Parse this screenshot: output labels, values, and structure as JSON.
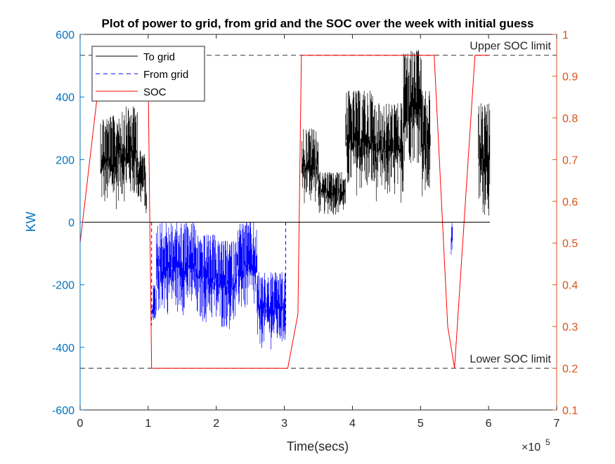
{
  "chart_data": {
    "type": "line",
    "title": "Plot of power to grid, from grid and the SOC over the week with initial guess",
    "xlabel": "Time(secs)",
    "x_exponent": "×10",
    "x_exponent_power": "5",
    "ylabel_left": "KW",
    "ylabel_right": "",
    "xlim": [
      0,
      7
    ],
    "ylim_left": [
      -600,
      600
    ],
    "ylim_right": [
      0.1,
      1.0
    ],
    "x_ticks": [
      "0",
      "1",
      "2",
      "3",
      "4",
      "5",
      "6",
      "7"
    ],
    "y_left_ticks": [
      "-600",
      "-400",
      "-200",
      "0",
      "200",
      "400",
      "600"
    ],
    "y_right_ticks": [
      "0.1",
      "0.2",
      "0.3",
      "0.4",
      "0.5",
      "0.6",
      "0.7",
      "0.8",
      "0.9",
      "1"
    ],
    "legend": {
      "position": "top-left",
      "entries": [
        "To grid",
        "From grid",
        "SOC"
      ]
    },
    "reference_lines": [
      {
        "label": "Upper SOC limit",
        "soc": 0.95
      },
      {
        "label": "Lower SOC limit",
        "soc": 0.2
      }
    ],
    "series": [
      {
        "name": "To grid",
        "axis": "left",
        "style": "solid",
        "color": "#000000",
        "blocks": [
          {
            "x_start": 0.3,
            "x_end": 0.55,
            "low": 30,
            "high": 340
          },
          {
            "x_start": 0.55,
            "x_end": 0.85,
            "low": 60,
            "high": 370
          },
          {
            "x_start": 0.85,
            "x_end": 0.95,
            "low": 40,
            "high": 230
          },
          {
            "x_start": 0.95,
            "x_end": 0.98,
            "low": 0,
            "high": 180
          },
          {
            "x_start": 3.25,
            "x_end": 3.5,
            "low": 50,
            "high": 300
          },
          {
            "x_start": 3.5,
            "x_end": 3.9,
            "low": 20,
            "high": 160
          },
          {
            "x_start": 3.9,
            "x_end": 4.3,
            "low": 80,
            "high": 420
          },
          {
            "x_start": 4.3,
            "x_end": 4.75,
            "low": 60,
            "high": 380
          },
          {
            "x_start": 4.75,
            "x_end": 5.02,
            "low": 180,
            "high": 550
          },
          {
            "x_start": 5.02,
            "x_end": 5.15,
            "low": 50,
            "high": 420
          },
          {
            "x_start": 5.85,
            "x_end": 6.02,
            "low": 10,
            "high": 380
          }
        ]
      },
      {
        "name": "From grid",
        "axis": "left",
        "style": "dashed",
        "color": "#0000FF",
        "blocks": [
          {
            "x_start": 1.05,
            "x_end": 1.12,
            "low": -370,
            "high": -200
          },
          {
            "x_start": 1.12,
            "x_end": 1.7,
            "low": -300,
            "high": 0
          },
          {
            "x_start": 1.7,
            "x_end": 2.0,
            "low": -330,
            "high": -40
          },
          {
            "x_start": 2.0,
            "x_end": 2.3,
            "low": -350,
            "high": -60
          },
          {
            "x_start": 2.3,
            "x_end": 2.6,
            "low": -300,
            "high": 0
          },
          {
            "x_start": 2.6,
            "x_end": 3.02,
            "low": -410,
            "high": -160
          },
          {
            "x_start": 5.45,
            "x_end": 5.47,
            "low": -120,
            "high": 0
          }
        ]
      },
      {
        "name": "SOC",
        "axis": "right",
        "style": "solid",
        "color": "#FF0000",
        "x": [
          0,
          0.25,
          0.3,
          0.4,
          0.45,
          1.0,
          1.02,
          1.05,
          2.0,
          3.05,
          3.2,
          3.25,
          5.2,
          5.4,
          5.5,
          5.8,
          5.85,
          6.0
        ],
        "y": [
          0.5,
          0.85,
          0.87,
          0.9,
          0.92,
          0.89,
          0.6,
          0.2,
          0.2,
          0.2,
          0.33,
          0.95,
          0.95,
          0.3,
          0.2,
          0.95,
          0.95,
          0.95
        ]
      }
    ]
  }
}
